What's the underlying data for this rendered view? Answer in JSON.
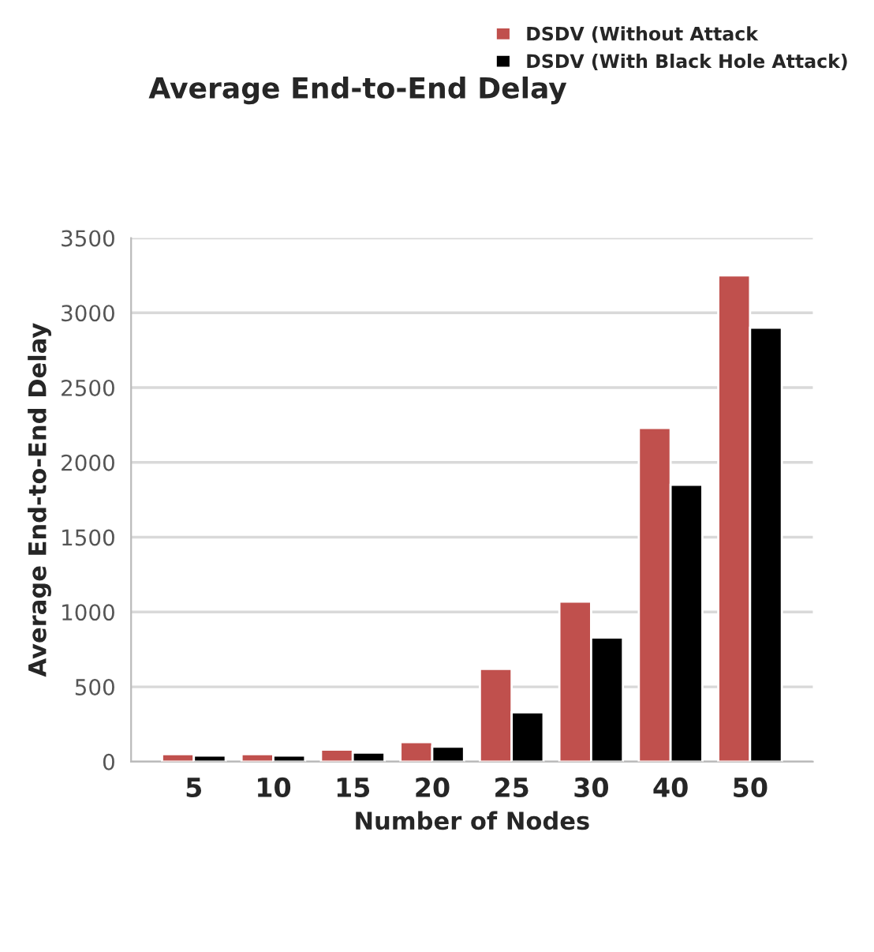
{
  "chart_data": {
    "type": "bar",
    "title": "Average End-to-End Delay",
    "xlabel": "Number of Nodes",
    "ylabel": "Average End-to-End Delay",
    "categories": [
      "5",
      "10",
      "15",
      "20",
      "25",
      "30",
      "40",
      "50"
    ],
    "series": [
      {
        "name": "DSDV (Without Attack",
        "color": "#c0504d",
        "values": [
          50,
          50,
          80,
          130,
          620,
          1070,
          2230,
          3250
        ]
      },
      {
        "name": "DSDV (With Black Hole Attack)",
        "color": "#000000",
        "values": [
          40,
          40,
          60,
          100,
          330,
          830,
          1850,
          2900
        ]
      }
    ],
    "ylim": [
      0,
      3500
    ],
    "yticks": [
      0,
      500,
      1000,
      1500,
      2000,
      2500,
      3000,
      3500
    ],
    "grid": "y",
    "legend": "top right"
  }
}
